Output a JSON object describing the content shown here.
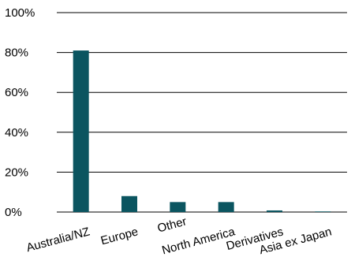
{
  "chart_data": {
    "type": "bar",
    "categories": [
      "Australia/NZ",
      "Europe",
      "Other",
      "North America",
      "Derivatives",
      "Asia ex Japan"
    ],
    "values": [
      81,
      8,
      5,
      5,
      0.8,
      0.3
    ],
    "color": "#0b5560",
    "ylim": [
      0,
      100
    ],
    "yticks": [
      {
        "value": 0,
        "label": "0%"
      },
      {
        "value": 20,
        "label": "20%"
      },
      {
        "value": 40,
        "label": "40%"
      },
      {
        "value": 60,
        "label": "60%"
      },
      {
        "value": 80,
        "label": "80%"
      },
      {
        "value": 100,
        "label": "100%"
      }
    ],
    "grid": true
  }
}
